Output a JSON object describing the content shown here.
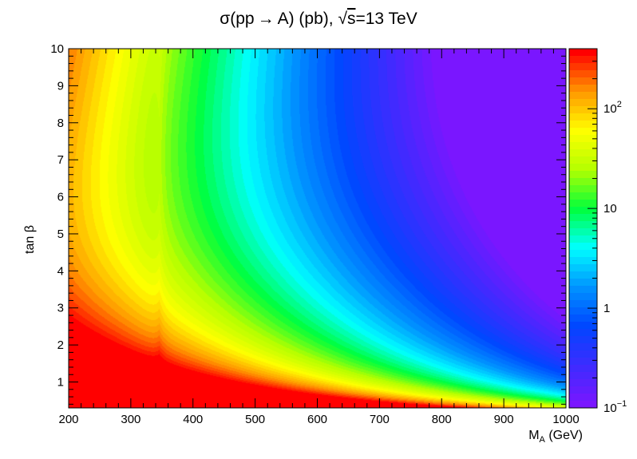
{
  "chart_data": {
    "type": "heatmap",
    "title": {
      "prefix": "σ(pp",
      "arrow": "→",
      "middle": "A) (pb), ",
      "sqrt": "√",
      "s": "s",
      "suffix": "=13 TeV"
    },
    "xlabel": {
      "main": "M",
      "sub": "A",
      "unit": " (GeV)"
    },
    "ylabel": "tan β",
    "xlim": [
      200,
      1000
    ],
    "ylim": [
      0.3,
      10
    ],
    "x_ticks": [
      "200",
      "300",
      "400",
      "500",
      "600",
      "700",
      "800",
      "900",
      "1000"
    ],
    "y_ticks": [
      "1",
      "2",
      "3",
      "4",
      "5",
      "6",
      "7",
      "8",
      "9",
      "10"
    ],
    "z_scale": "log",
    "zlim": [
      0.1,
      400
    ],
    "z_ticks": [
      {
        "value": 0.1,
        "base": "10",
        "exp": "−1"
      },
      {
        "value": 1,
        "base": "1",
        "exp": ""
      },
      {
        "value": 10,
        "base": "10",
        "exp": ""
      },
      {
        "value": 100,
        "base": "10",
        "exp": "2"
      }
    ],
    "colormap": "rainbow",
    "colors": {
      "stops": [
        "#7a16ff",
        "#3c2cff",
        "#0046ff",
        "#0094ff",
        "#00ffff",
        "#00ff3c",
        "#b4ff00",
        "#ffff00",
        "#ff9600",
        "#ff0000"
      ],
      "frame": "#000000"
    },
    "n_contours": 50,
    "features": {
      "threshold_mass": 346,
      "min_z_region": "upper-right"
    }
  }
}
